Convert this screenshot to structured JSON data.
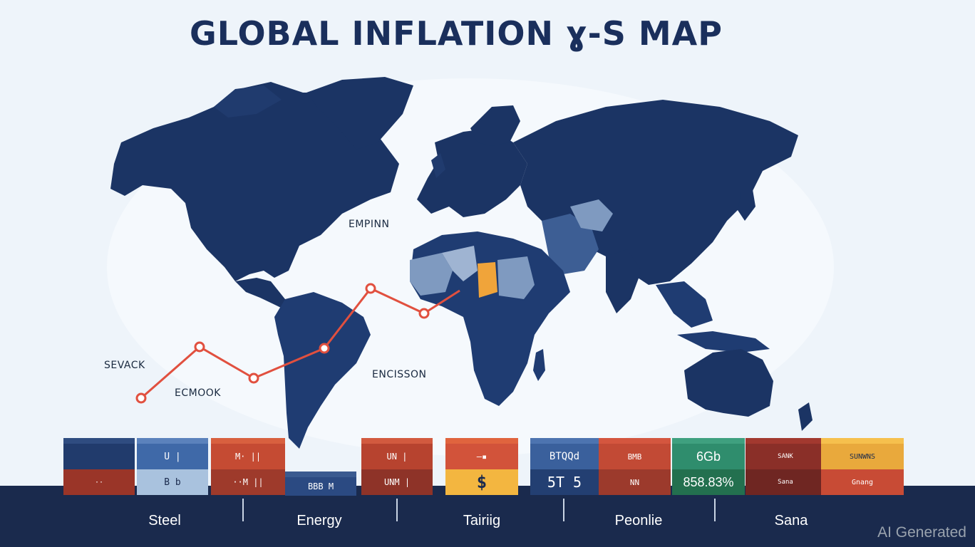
{
  "header": {
    "title": "GLOBAL INFLATION ɣ-S MAP"
  },
  "map": {
    "labels": {
      "north_atlantic": "EMPINN",
      "west_ocean": "SEVACK",
      "south_west": "ECMOOK",
      "south_atlantic": "ENCISSON"
    },
    "colors": {
      "land": "#1b3464",
      "ocean": "#eef4fa",
      "highlight_orange": "#f0a43a",
      "highlight_light": "#7f9ac0",
      "line": "#e1503f"
    }
  },
  "bottom": {
    "labels": [
      "Steel",
      "Energy",
      "Tairiig",
      "Peonlie",
      "Sana"
    ],
    "watermark": "AI Generated"
  },
  "boxes": {
    "b1_bottom": "··",
    "b2_top": "U |",
    "b2_bottom": "B  b",
    "b3_top": "M·  ||",
    "b3_bottom": "··M  ||",
    "b4": "BBB  M",
    "b5_top": "UN  |",
    "b5_bottom": "UNM  |",
    "b6_top": "—▪",
    "b6_bottom": "$",
    "b7_top": "BTQQd",
    "b7_bottom": "5T 5",
    "b8_top": "BMB",
    "b8_bottom": "NN",
    "b9_top": "6Gb",
    "b9_bottom": "858.83%",
    "b10_top": "SANK",
    "b10_bottom": "Sana",
    "b11_top": "SUNWNS",
    "b11_bottom": "Gnang"
  }
}
